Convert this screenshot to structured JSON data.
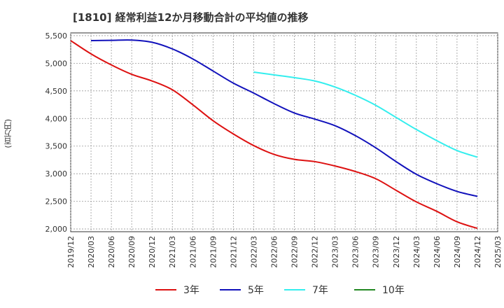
{
  "chart_data": {
    "type": "line",
    "title": "[1810]  経常利益12か月移動合計の平均値の推移",
    "ylabel": "(百万円)",
    "ylim": [
      1950,
      5550
    ],
    "yticks": [
      2000,
      2500,
      3000,
      3500,
      4000,
      4500,
      5000,
      5500
    ],
    "ytick_labels": [
      "2,000",
      "2,500",
      "3,000",
      "3,500",
      "4,000",
      "4,500",
      "5,000",
      "5,500"
    ],
    "x_labels": [
      "2019/12",
      "2020/03",
      "2020/06",
      "2020/09",
      "2020/12",
      "2021/03",
      "2021/06",
      "2021/09",
      "2021/12",
      "2022/03",
      "2022/06",
      "2022/09",
      "2022/12",
      "2023/03",
      "2023/06",
      "2023/09",
      "2023/12",
      "2024/03",
      "2024/06",
      "2024/09",
      "2024/12",
      "2025/03"
    ],
    "grid": true,
    "legend_position": "bottom",
    "series": [
      {
        "name": "3年",
        "color": "#dd1111",
        "x": [
          "2019/12",
          "2020/03",
          "2020/06",
          "2020/09",
          "2020/12",
          "2021/03",
          "2021/06",
          "2021/09",
          "2021/12",
          "2022/03",
          "2022/06",
          "2022/09",
          "2022/12",
          "2023/03",
          "2023/06",
          "2023/09",
          "2023/12",
          "2024/03",
          "2024/06",
          "2024/09",
          "2024/12"
        ],
        "values": [
          5410,
          5170,
          4970,
          4800,
          4680,
          4520,
          4250,
          3960,
          3720,
          3510,
          3350,
          3260,
          3220,
          3140,
          3040,
          2910,
          2700,
          2490,
          2320,
          2130,
          2010
        ]
      },
      {
        "name": "5年",
        "color": "#1111bb",
        "x": [
          "2020/03",
          "2020/06",
          "2020/09",
          "2020/12",
          "2021/03",
          "2021/06",
          "2021/09",
          "2021/12",
          "2022/03",
          "2022/06",
          "2022/09",
          "2022/12",
          "2023/03",
          "2023/06",
          "2023/09",
          "2023/12",
          "2024/03",
          "2024/06",
          "2024/09",
          "2024/12"
        ],
        "values": [
          5410,
          5415,
          5420,
          5380,
          5260,
          5080,
          4860,
          4640,
          4460,
          4270,
          4100,
          3990,
          3870,
          3690,
          3470,
          3220,
          2990,
          2820,
          2680,
          2590
        ]
      },
      {
        "name": "7年",
        "color": "#33eeee",
        "x": [
          "2022/03",
          "2022/06",
          "2022/09",
          "2022/12",
          "2023/03",
          "2023/06",
          "2023/09",
          "2023/12",
          "2024/03",
          "2024/06",
          "2024/09",
          "2024/12"
        ],
        "values": [
          4840,
          4790,
          4740,
          4680,
          4570,
          4420,
          4240,
          4020,
          3800,
          3600,
          3420,
          3300
        ]
      },
      {
        "name": "10年",
        "color": "#228822",
        "x": [],
        "values": []
      }
    ]
  }
}
